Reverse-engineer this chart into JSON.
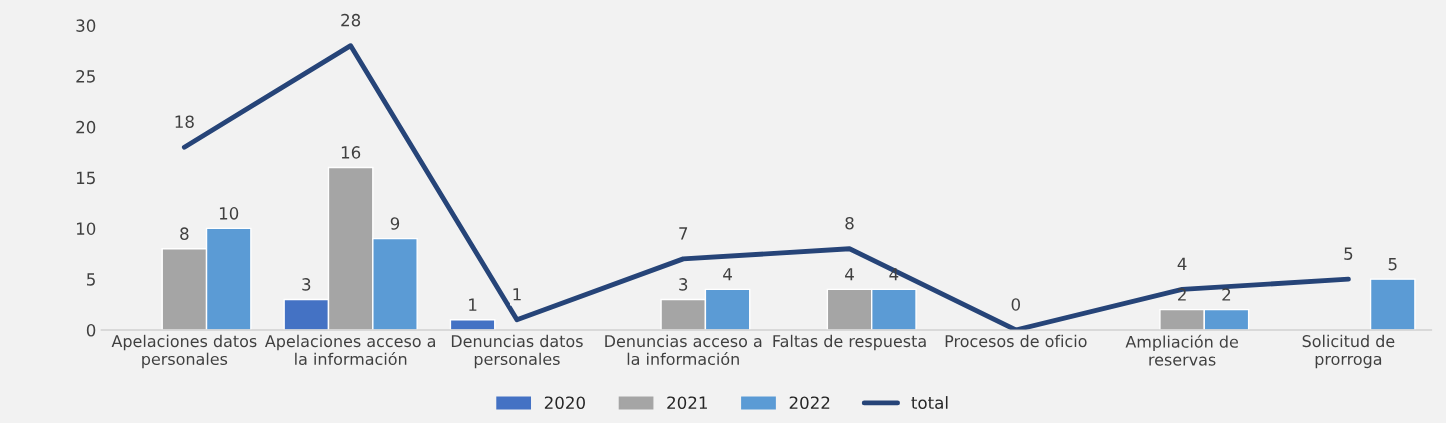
{
  "chart_data": {
    "type": "bar",
    "categories": [
      "Apelaciones datos personales",
      "Apelaciones acceso a la información",
      "Denuncias datos personales",
      "Denuncias acceso a la información",
      "Faltas de respuesta",
      "Procesos de oficio",
      "Ampliación de reservas",
      "Solicitud de prorroga"
    ],
    "series": [
      {
        "name": "2020",
        "color": "#4472c4",
        "values": [
          null,
          3,
          1,
          null,
          null,
          null,
          null,
          null
        ]
      },
      {
        "name": "2021",
        "color": "#a5a5a5",
        "values": [
          8,
          16,
          null,
          3,
          4,
          null,
          2,
          null
        ]
      },
      {
        "name": "2022",
        "color": "#5b9bd5",
        "values": [
          10,
          9,
          null,
          4,
          4,
          null,
          2,
          5
        ]
      },
      {
        "name": "total",
        "type": "line",
        "color": "#264478",
        "values": [
          18,
          28,
          1,
          7,
          8,
          0,
          4,
          5
        ]
      }
    ],
    "ylim": [
      0,
      30
    ],
    "yticks": [
      0,
      5,
      10,
      15,
      20,
      25,
      30
    ],
    "data_labels": true,
    "grid": false,
    "legend": "bottom",
    "marker": "none",
    "line_style": "solid"
  }
}
